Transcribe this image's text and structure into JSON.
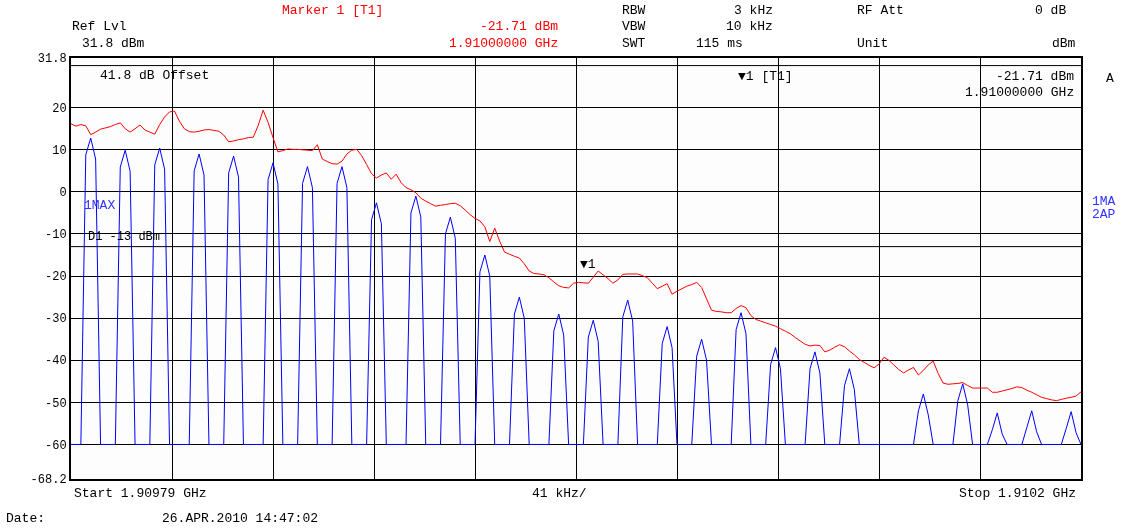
{
  "chart_data": {
    "type": "line",
    "categories": [
      null,
      null,
      null,
      null,
      null,
      null,
      null,
      null,
      null,
      null,
      null,
      null,
      null,
      null,
      null,
      null,
      null,
      null,
      null,
      null,
      null,
      null,
      null,
      null,
      null,
      null,
      null,
      null,
      null,
      null,
      null,
      null,
      null,
      null,
      null,
      null,
      null,
      null,
      null,
      null,
      null,
      null,
      null,
      null,
      null,
      null,
      null,
      null,
      null,
      null,
      null,
      null,
      null,
      null,
      null,
      null,
      null,
      null,
      null,
      null,
      null,
      null,
      null,
      null,
      null,
      null,
      null,
      null,
      null,
      null,
      null,
      null,
      null,
      null,
      null,
      null,
      null,
      null,
      null,
      null,
      null,
      null,
      null,
      null,
      null,
      null,
      null,
      null,
      null,
      null,
      null,
      null,
      null,
      null,
      null,
      null,
      null,
      null,
      null,
      null,
      null,
      null,
      null,
      null,
      null,
      null,
      null,
      null,
      null,
      null,
      null,
      null,
      null,
      null,
      null,
      null,
      null,
      null,
      null,
      null,
      null,
      null,
      null,
      null,
      null,
      null,
      null,
      null,
      null,
      null,
      null,
      null,
      null,
      null,
      null,
      null,
      null,
      null,
      null,
      null,
      null,
      null,
      null,
      null,
      null,
      null,
      null,
      null,
      null,
      null,
      null,
      null,
      null,
      null,
      null,
      null,
      null,
      null,
      null,
      null,
      null,
      null,
      null,
      null,
      null,
      null,
      null,
      null,
      null,
      null,
      null,
      null,
      null,
      null,
      null,
      null,
      null,
      null,
      null,
      null,
      null,
      null,
      null,
      null,
      null,
      null,
      null,
      null,
      null,
      null,
      null,
      null,
      null,
      null,
      null,
      null,
      null,
      null,
      null,
      null,
      null,
      null,
      null,
      null,
      null,
      null
    ],
    "ylim": [
      -68.2,
      31.8
    ],
    "yticks": [
      -68.2,
      -60,
      -50,
      -40,
      -30,
      -20,
      -10,
      0,
      10,
      20,
      31.8
    ],
    "grid": true,
    "series": [
      {
        "color": "#ff0000",
        "values": [
          16.2,
          15.6,
          16.0,
          15.7,
          13.6,
          14.2,
          14.9,
          15.2,
          15.5,
          16.0,
          16.4,
          15.0,
          14.2,
          15.0,
          15.9,
          14.7,
          14.2,
          13.7,
          16.0,
          17.8,
          19.0,
          19.2,
          16.8,
          15.0,
          14.3,
          14.2,
          14.4,
          14.7,
          14.8,
          14.6,
          14.4,
          13.5,
          11.9,
          12.1,
          12.4,
          12.6,
          12.9,
          13.0,
          15.8,
          19.4,
          16.5,
          12.9,
          9.5,
          9.8,
          10.2,
          10.1,
          10.1,
          10.0,
          9.9,
          9.8,
          11.2,
          7.8,
          7.2,
          6.7,
          6.6,
          7.3,
          9.0,
          9.9,
          10.1,
          8.6,
          6.5,
          4.3,
          3.3,
          4.0,
          4.5,
          3.0,
          4.2,
          2.2,
          1.0,
          0.5,
          -0.2,
          -1.5,
          -2.2,
          -2.8,
          -3.4,
          -3.2,
          -3.0,
          -2.8,
          -2.7,
          -3.3,
          -4.3,
          -5.4,
          -6.3,
          -6.9,
          -8.3,
          -11.8,
          -8.6,
          -11.7,
          -14.3,
          -14.8,
          -15.3,
          -15.7,
          -17.1,
          -18.8,
          -19.4,
          -19.5,
          -19.7,
          -20.4,
          -21.4,
          -22.3,
          -22.7,
          -22.8,
          -21.7,
          -21.5,
          -21.6,
          -21.7,
          -20.3,
          -18.8,
          -19.7,
          -20.6,
          -21.7,
          -20.9,
          -19.6,
          -19.5,
          -19.5,
          -19.5,
          -19.9,
          -20.4,
          -21.7,
          -23.0,
          -22.4,
          -21.8,
          -24.3,
          -23.6,
          -23.0,
          -22.4,
          -22.0,
          -21.5,
          -22.7,
          -25.4,
          -28.1,
          -28.4,
          -28.5,
          -28.7,
          -28.7,
          -27.7,
          -27.0,
          -27.5,
          -29.4,
          -30.3,
          -30.7,
          -31.1,
          -31.5,
          -31.9,
          -32.5,
          -33.1,
          -33.7,
          -34.6,
          -35.4,
          -36.2,
          -36.6,
          -36.4,
          -36.5,
          -38.0,
          -37.6,
          -36.9,
          -36.3,
          -36.8,
          -37.8,
          -38.7,
          -39.8,
          -40.5,
          -41.2,
          -41.8,
          -40.9,
          -39.3,
          -40.0,
          -41.1,
          -42.2,
          -43.0,
          -42.3,
          -41.7,
          -43.5,
          -42.4,
          -41.1,
          -40.2,
          -43.1,
          -45.4,
          -45.7,
          -45.6,
          -45.5,
          -45.3,
          -46.0,
          -46.6,
          -46.6,
          -46.6,
          -46.6,
          -47.6,
          -47.6,
          -47.3,
          -47.0,
          -46.7,
          -46.3,
          -46.5,
          -47.1,
          -47.6,
          -48.2,
          -48.8,
          -49.1,
          -49.4,
          -49.6,
          -49.3,
          -49.0,
          -48.8,
          -48.5,
          -47.5
        ]
      },
      {
        "color": "#0000ff",
        "values": [
          -60,
          -60,
          -60,
          8.8,
          12.8,
          7.8,
          -60,
          -60,
          -60,
          -60,
          5.9,
          9.9,
          4.9,
          -60,
          -60,
          -60,
          -60,
          6.4,
          10.4,
          5.4,
          -60,
          -60,
          -60,
          -60,
          -60,
          5,
          9,
          4,
          -60,
          -60,
          -60,
          -60,
          4.5,
          8.5,
          3.5,
          -60,
          -60,
          -60,
          -60,
          -60,
          2.9,
          6.9,
          1.9,
          -60,
          -60,
          -60,
          -60,
          2,
          6,
          1,
          -60,
          -60,
          -60,
          -60,
          2,
          6,
          1,
          -60,
          -60,
          -60,
          -60,
          -6.6,
          -2.6,
          -7.6,
          -60,
          -60,
          -60,
          -60,
          -60,
          -5,
          -1,
          -6,
          -60,
          -60,
          -60,
          -60,
          -10,
          -6,
          -11,
          -60,
          -60,
          -60,
          -60,
          -19,
          -15,
          -20,
          -60,
          -60,
          -60,
          -60,
          -29,
          -25,
          -30,
          -60,
          -60,
          -60,
          -60,
          -60,
          -33,
          -29,
          -34,
          -60,
          -60,
          -60,
          -60,
          -34.5,
          -30.5,
          -35.5,
          -60,
          -60,
          -60,
          -60,
          -29.7,
          -25.7,
          -30.7,
          -60,
          -60,
          -60,
          -60,
          -60,
          -36,
          -32,
          -37,
          -60,
          -60,
          -60,
          -60,
          -39,
          -35,
          -40,
          -60,
          -60,
          -60,
          -60,
          -60,
          -32.7,
          -28.7,
          -33.7,
          -60,
          -60,
          -60,
          -60,
          -41,
          -37,
          -42,
          -60,
          -60,
          -60,
          -60,
          -60,
          -42,
          -38,
          -43,
          -60,
          -60,
          -60,
          -60,
          -46,
          -42,
          -47,
          -60,
          -60,
          -60,
          -60,
          -60,
          -60,
          -60,
          -60,
          -60,
          -60,
          -60,
          -60,
          -52,
          -48,
          -53,
          -60,
          -60,
          -60,
          -60,
          -60,
          -49.6,
          -45.6,
          -50.6,
          -60,
          -60,
          -60,
          -60,
          -56.5,
          -52.5,
          -57.5,
          -60,
          -60,
          -60,
          -60,
          -56,
          -52,
          -57,
          -60,
          -60,
          -60,
          -60,
          -60,
          -56.2,
          -52.2,
          -57.2,
          -60
        ]
      }
    ],
    "ref_lines": [
      {
        "axis": "y",
        "value": -13,
        "label": "D1 -13 dBm",
        "color": "#000000"
      },
      {
        "axis": "y",
        "value": 30,
        "label": null,
        "color": "#000000"
      }
    ],
    "annotations": [
      "Ref Lvl",
      "31.8 dBm",
      "Marker 1 [T1]",
      "-21.71 dBm",
      "1.91000000 GHz",
      "RBW",
      "3 kHz",
      "VBW",
      "10 kHz",
      "SWT",
      "115 ms",
      "RF Att",
      "0 dB",
      "Unit",
      "dBm",
      "41.8 dB Offset",
      "▼1 [T1]",
      "-21.71 dBm",
      "1.91000000 GHz",
      "A",
      "1MAX",
      "1MA",
      "2AP",
      "Start 1.90979 GHz",
      "41 kHz/",
      "Stop 1.9102 GHz",
      "Date:",
      "26.APR.2010 14:47:02",
      "▼1"
    ]
  }
}
